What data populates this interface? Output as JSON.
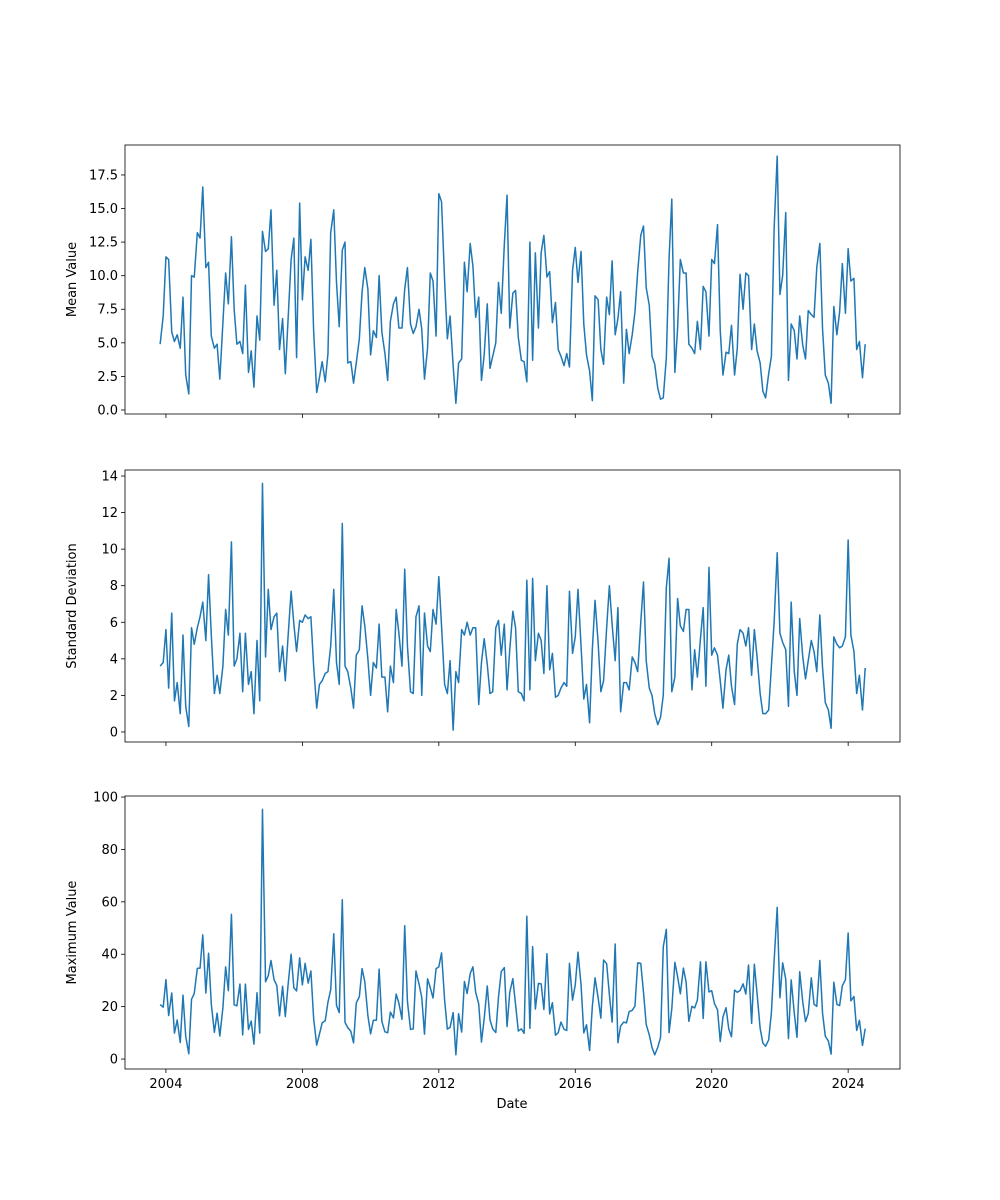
{
  "chart_data": {
    "type": "line",
    "x_label": "Date",
    "xlim": [
      2002.8,
      2025.52
    ],
    "xticks": [
      2004,
      2008,
      2012,
      2016,
      2020,
      2024
    ],
    "x": [
      2003.83,
      2003.92,
      2004.0,
      2004.08,
      2004.17,
      2004.25,
      2004.33,
      2004.42,
      2004.5,
      2004.58,
      2004.67,
      2004.75,
      2004.83,
      2004.92,
      2005.0,
      2005.08,
      2005.17,
      2005.25,
      2005.33,
      2005.42,
      2005.5,
      2005.58,
      2005.67,
      2005.75,
      2005.83,
      2005.92,
      2006.0,
      2006.08,
      2006.17,
      2006.25,
      2006.33,
      2006.42,
      2006.5,
      2006.58,
      2006.67,
      2006.75,
      2006.83,
      2006.92,
      2007.0,
      2007.08,
      2007.17,
      2007.25,
      2007.33,
      2007.42,
      2007.5,
      2007.58,
      2007.67,
      2007.75,
      2007.83,
      2007.92,
      2008.0,
      2008.08,
      2008.17,
      2008.25,
      2008.33,
      2008.42,
      2008.5,
      2008.58,
      2008.67,
      2008.75,
      2008.83,
      2008.92,
      2009.0,
      2009.08,
      2009.17,
      2009.25,
      2009.33,
      2009.42,
      2009.5,
      2009.58,
      2009.67,
      2009.75,
      2009.83,
      2009.92,
      2010.0,
      2010.08,
      2010.17,
      2010.25,
      2010.33,
      2010.42,
      2010.5,
      2010.58,
      2010.67,
      2010.75,
      2010.83,
      2010.92,
      2011.0,
      2011.08,
      2011.17,
      2011.25,
      2011.33,
      2011.42,
      2011.5,
      2011.58,
      2011.67,
      2011.75,
      2011.83,
      2011.92,
      2012.0,
      2012.08,
      2012.17,
      2012.25,
      2012.33,
      2012.42,
      2012.5,
      2012.58,
      2012.67,
      2012.75,
      2012.83,
      2012.92,
      2013.0,
      2013.08,
      2013.17,
      2013.25,
      2013.33,
      2013.42,
      2013.5,
      2013.58,
      2013.67,
      2013.75,
      2013.83,
      2013.92,
      2014.0,
      2014.08,
      2014.17,
      2014.25,
      2014.33,
      2014.42,
      2014.5,
      2014.58,
      2014.67,
      2014.75,
      2014.83,
      2014.92,
      2015.0,
      2015.08,
      2015.17,
      2015.25,
      2015.33,
      2015.42,
      2015.5,
      2015.58,
      2015.67,
      2015.75,
      2015.83,
      2015.92,
      2016.0,
      2016.08,
      2016.17,
      2016.25,
      2016.33,
      2016.42,
      2016.5,
      2016.58,
      2016.67,
      2016.75,
      2016.83,
      2016.92,
      2017.0,
      2017.08,
      2017.17,
      2017.25,
      2017.33,
      2017.42,
      2017.5,
      2017.58,
      2017.67,
      2017.75,
      2017.83,
      2017.92,
      2018.0,
      2018.08,
      2018.17,
      2018.25,
      2018.33,
      2018.42,
      2018.5,
      2018.58,
      2018.67,
      2018.75,
      2018.83,
      2018.92,
      2019.0,
      2019.08,
      2019.17,
      2019.25,
      2019.33,
      2019.42,
      2019.5,
      2019.58,
      2019.67,
      2019.75,
      2019.83,
      2019.92,
      2020.0,
      2020.08,
      2020.17,
      2020.25,
      2020.33,
      2020.42,
      2020.5,
      2020.58,
      2020.67,
      2020.75,
      2020.83,
      2020.92,
      2021.0,
      2021.08,
      2021.17,
      2021.25,
      2021.33,
      2021.42,
      2021.5,
      2021.58,
      2021.67,
      2021.75,
      2021.83,
      2021.92,
      2022.0,
      2022.08,
      2022.17,
      2022.25,
      2022.33,
      2022.42,
      2022.5,
      2022.58,
      2022.67,
      2022.75,
      2022.83,
      2022.92,
      2023.0,
      2023.08,
      2023.17,
      2023.25,
      2023.33,
      2023.42,
      2023.5,
      2023.58,
      2023.67,
      2023.75,
      2023.83,
      2023.92,
      2024.0,
      2024.08,
      2024.17,
      2024.25,
      2024.33,
      2024.42,
      2024.5
    ],
    "panels": [
      {
        "y_label": "Mean Value",
        "ylim": [
          -0.3,
          19.73
        ],
        "yticks": [
          {
            "value": 0,
            "label": "0.0"
          },
          2.5,
          {
            "value": 5,
            "label": "5.0"
          },
          7.5,
          {
            "value": 10,
            "label": "10.0"
          },
          12.5,
          {
            "value": 15,
            "label": "15.0"
          },
          17.5
        ],
        "series": [
          {
            "color": "#1f77b4",
            "values": [
              4.9,
              7.0,
              11.4,
              11.2,
              5.8,
              5.1,
              5.6,
              4.6,
              8.4,
              2.6,
              1.2,
              10.0,
              9.9,
              13.2,
              12.8,
              16.6,
              10.6,
              11.0,
              5.5,
              4.6,
              4.9,
              2.3,
              6.5,
              10.2,
              7.9,
              12.9,
              7.5,
              4.9,
              5.1,
              4.2,
              9.3,
              2.8,
              4.4,
              1.7,
              7.0,
              5.2,
              13.3,
              11.8,
              12.0,
              14.9,
              7.8,
              10.4,
              4.5,
              6.8,
              2.7,
              6.7,
              11.2,
              12.8,
              3.9,
              15.4,
              8.2,
              11.4,
              10.4,
              12.7,
              5.9,
              1.3,
              2.4,
              3.6,
              2.1,
              4.2,
              13.2,
              14.9,
              9.5,
              6.2,
              11.9,
              12.5,
              3.5,
              3.6,
              2.0,
              3.5,
              5.3,
              8.8,
              10.6,
              9.0,
              4.1,
              5.9,
              5.4,
              10.0,
              5.8,
              4.2,
              2.2,
              6.6,
              7.9,
              8.4,
              6.1,
              6.1,
              9.0,
              10.6,
              6.4,
              5.7,
              6.2,
              7.5,
              6.0,
              2.3,
              4.6,
              10.2,
              9.6,
              5.5,
              16.1,
              15.5,
              9.6,
              5.3,
              7.0,
              3.3,
              0.5,
              3.5,
              3.8,
              11.0,
              8.8,
              12.4,
              10.7,
              6.9,
              8.4,
              2.2,
              4.1,
              7.9,
              3.1,
              4.0,
              5.0,
              9.5,
              7.2,
              12.3,
              16.0,
              6.1,
              8.7,
              8.9,
              5.4,
              3.7,
              3.6,
              2.1,
              12.5,
              3.7,
              11.7,
              6.1,
              11.7,
              13.0,
              9.9,
              10.3,
              6.5,
              8.0,
              4.5,
              4.0,
              3.3,
              4.2,
              3.2,
              10.4,
              12.1,
              9.5,
              11.8,
              6.4,
              4.1,
              2.9,
              0.7,
              8.5,
              8.2,
              4.5,
              3.4,
              8.4,
              7.1,
              11.1,
              5.6,
              6.8,
              8.8,
              2.0,
              6.0,
              4.2,
              5.6,
              7.3,
              10.3,
              13.0,
              13.7,
              9.1,
              7.8,
              4.0,
              3.4,
              1.6,
              0.8,
              0.9,
              3.9,
              11.3,
              15.7,
              2.8,
              6.1,
              11.2,
              10.2,
              10.2,
              4.9,
              4.6,
              4.2,
              6.6,
              4.5,
              9.2,
              8.8,
              5.5,
              11.2,
              10.9,
              13.8,
              5.9,
              2.6,
              4.3,
              4.2,
              6.3,
              2.6,
              4.6,
              10.1,
              7.5,
              10.2,
              10.0,
              4.5,
              6.4,
              4.4,
              3.5,
              1.4,
              0.9,
              2.7,
              4.0,
              13.5,
              18.9,
              8.6,
              10.0,
              14.7,
              2.2,
              6.4,
              5.9,
              3.8,
              7.0,
              4.8,
              3.8,
              7.4,
              7.1,
              6.9,
              10.6,
              12.4,
              6.0,
              2.6,
              2.0,
              0.5,
              7.7,
              5.6,
              7.3,
              10.9,
              7.2,
              12.0,
              9.6,
              9.8,
              4.5,
              5.1,
              2.4,
              4.9
            ]
          }
        ]
      },
      {
        "y_label": "Standard Deviation",
        "ylim": [
          -0.55,
          14.33
        ],
        "yticks": [
          0,
          2,
          4,
          6,
          8,
          10,
          12,
          14
        ],
        "series": [
          {
            "color": "#1f77b4",
            "values": [
              3.6,
              3.8,
              5.6,
              2.4,
              6.5,
              1.7,
              2.7,
              1.0,
              5.3,
              1.4,
              0.3,
              5.7,
              4.8,
              5.7,
              6.3,
              7.1,
              5.0,
              8.6,
              5.3,
              2.1,
              3.1,
              2.1,
              3.6,
              6.7,
              5.3,
              10.4,
              3.6,
              4.0,
              5.4,
              2.2,
              5.4,
              2.6,
              3.3,
              1.0,
              5.0,
              1.7,
              13.6,
              4.1,
              7.8,
              5.6,
              6.3,
              6.5,
              3.3,
              4.7,
              2.8,
              5.2,
              7.7,
              5.9,
              4.4,
              6.1,
              6.0,
              6.4,
              6.2,
              6.3,
              3.6,
              1.3,
              2.6,
              2.8,
              3.2,
              3.3,
              4.7,
              7.8,
              3.8,
              2.6,
              11.4,
              3.6,
              3.3,
              2.4,
              1.3,
              4.2,
              4.5,
              6.9,
              5.8,
              4.0,
              2.0,
              3.8,
              3.5,
              5.9,
              3.0,
              3.0,
              1.1,
              3.6,
              2.7,
              6.7,
              5.4,
              3.6,
              8.9,
              4.7,
              2.2,
              2.1,
              6.3,
              6.9,
              2.0,
              6.5,
              4.7,
              4.4,
              6.7,
              5.9,
              8.5,
              5.8,
              2.6,
              2.1,
              3.9,
              0.1,
              3.3,
              2.7,
              5.6,
              5.3,
              6.0,
              5.3,
              5.7,
              5.7,
              1.5,
              3.8,
              5.1,
              3.7,
              2.1,
              2.2,
              5.7,
              6.1,
              4.2,
              5.9,
              2.3,
              4.5,
              6.6,
              5.7,
              2.2,
              2.1,
              1.7,
              8.3,
              2.3,
              8.4,
              3.9,
              5.4,
              5.0,
              3.2,
              8.0,
              3.4,
              4.3,
              1.9,
              2.0,
              2.4,
              2.7,
              2.5,
              7.7,
              4.3,
              5.2,
              7.8,
              4.7,
              1.8,
              2.6,
              0.5,
              4.5,
              7.2,
              4.9,
              2.2,
              2.8,
              5.7,
              8.0,
              5.9,
              3.9,
              6.8,
              1.1,
              2.7,
              2.7,
              2.3,
              4.1,
              3.8,
              3.3,
              6.0,
              8.2,
              3.9,
              2.4,
              2.0,
              1.0,
              0.4,
              0.8,
              2.0,
              7.9,
              9.5,
              2.2,
              3.0,
              7.3,
              5.8,
              5.5,
              6.7,
              6.7,
              2.3,
              4.5,
              3.0,
              5.1,
              6.8,
              2.5,
              9.0,
              4.2,
              4.6,
              4.2,
              2.8,
              1.3,
              3.4,
              4.2,
              2.5,
              1.5,
              4.8,
              5.6,
              5.4,
              4.7,
              5.7,
              3.1,
              5.6,
              4.1,
              2.1,
              1.0,
              1.0,
              1.2,
              3.6,
              6.0,
              9.8,
              5.4,
              4.9,
              4.5,
              1.4,
              7.1,
              3.3,
              2.0,
              6.2,
              4.1,
              2.9,
              3.9,
              5.0,
              4.4,
              3.3,
              6.4,
              3.5,
              1.6,
              1.2,
              0.2,
              5.2,
              4.8,
              4.6,
              4.7,
              5.2,
              10.5,
              5.3,
              4.4,
              2.1,
              3.1,
              1.2,
              3.5
            ]
          }
        ]
      },
      {
        "y_label": "Maximum Value",
        "ylim": [
          -3.8,
          100.4
        ],
        "yticks": [
          0,
          20,
          40,
          60,
          80,
          100
        ],
        "series": [
          {
            "color": "#1f77b4",
            "values": [
              20.8,
              19.8,
              30.3,
              16.6,
              25.2,
              9.9,
              14.9,
              6.3,
              24.4,
              8.6,
              2.0,
              22.8,
              25.0,
              34.6,
              34.7,
              47.4,
              25.2,
              40.4,
              21.0,
              10.2,
              17.5,
              8.8,
              19.6,
              35.2,
              26.1,
              55.2,
              20.7,
              20.3,
              28.6,
              9.2,
              28.6,
              11.3,
              14.5,
              5.7,
              25.3,
              9.9,
              95.3,
              29.5,
              31.8,
              37.6,
              30.3,
              28.1,
              16.5,
              27.8,
              16.2,
              28.2,
              40.0,
              27.2,
              26.0,
              38.6,
              28.3,
              36.5,
              29.0,
              33.6,
              15.5,
              5.3,
              9.5,
              13.8,
              14.6,
              21.7,
              26.4,
              47.8,
              20.5,
              17.7,
              60.8,
              14.0,
              12.0,
              10.6,
              6.2,
              21.4,
              23.8,
              34.5,
              29.5,
              16.6,
              9.6,
              14.8,
              14.8,
              34.3,
              14.3,
              10.4,
              10.0,
              17.9,
              15.7,
              24.8,
              21.3,
              15.2,
              50.9,
              22.0,
              11.3,
              11.5,
              33.6,
              28.6,
              23.5,
              9.5,
              30.6,
              27.2,
              23.3,
              34.5,
              35.2,
              40.5,
              22.5,
              11.4,
              12.1,
              17.7,
              1.6,
              17.3,
              10.3,
              29.6,
              25.0,
              32.6,
              35.2,
              25.5,
              21.0,
              6.5,
              15.4,
              27.9,
              15.0,
              11.5,
              10.1,
              23.7,
              33.4,
              34.9,
              12.4,
              25.5,
              30.7,
              20.8,
              10.7,
              11.5,
              9.8,
              54.5,
              11.7,
              42.9,
              19.1,
              28.9,
              28.7,
              18.9,
              40.2,
              17.2,
              21.5,
              9.1,
              10.0,
              14.1,
              11.4,
              10.9,
              36.5,
              22.5,
              28.3,
              40.8,
              28.3,
              10.0,
              13.1,
              3.3,
              20.0,
              31.0,
              23.4,
              15.6,
              37.8,
              36.4,
              24.6,
              14.1,
              43.9,
              6.2,
              12.6,
              14.1,
              13.8,
              18.1,
              18.6,
              20.2,
              36.7,
              36.5,
              25.5,
              13.2,
              9.2,
              4.4,
              1.6,
              4.5,
              8.2,
              42.8,
              49.5,
              10.1,
              19.2,
              36.9,
              31.5,
              24.9,
              34.7,
              29.3,
              14.4,
              20.1,
              19.5,
              22.5,
              37.1,
              15.5,
              37.1,
              25.6,
              26.1,
              21.2,
              18.8,
              6.7,
              16.1,
              19.6,
              11.5,
              8.5,
              26.3,
              25.5,
              26.1,
              28.7,
              24.8,
              35.9,
              13.6,
              36.2,
              24.9,
              11.7,
              6.1,
              4.9,
              7.3,
              17.7,
              37.6,
              57.9,
              23.4,
              36.7,
              30.5,
              7.8,
              30.2,
              17.6,
              8.3,
              33.3,
              21.7,
              14.3,
              17.4,
              31.0,
              20.9,
              20.1,
              37.6,
              17.4,
              8.7,
              6.9,
              1.9,
              29.3,
              20.9,
              20.4,
              28.0,
              30.3,
              48.1,
              22.2,
              23.9,
              10.9,
              14.8,
              5.2,
              11.6
            ]
          }
        ]
      }
    ]
  }
}
